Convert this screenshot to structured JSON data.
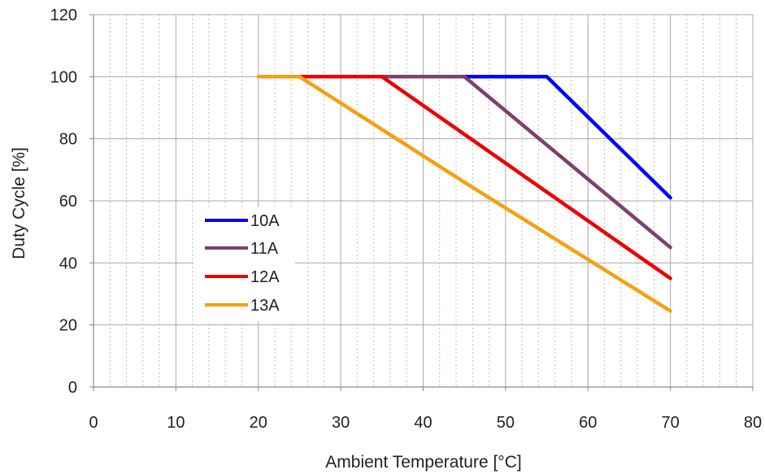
{
  "chart_data": {
    "type": "line",
    "title": "",
    "xlabel": "Ambient Temperature [°C]",
    "ylabel": "Duty Cycle [%]",
    "xlim": [
      0,
      80
    ],
    "ylim": [
      0,
      120
    ],
    "xticks": [
      0,
      10,
      20,
      30,
      40,
      50,
      60,
      70,
      80
    ],
    "yticks": [
      0,
      20,
      40,
      60,
      80,
      100,
      120
    ],
    "x_minor_step": 2,
    "grid": true,
    "legend_position": "left-middle",
    "series": [
      {
        "name": "10A",
        "color": "#0000ff",
        "x": [
          45,
          55,
          70
        ],
        "y": [
          100,
          100,
          61
        ]
      },
      {
        "name": "11A",
        "color": "#7f3f6f",
        "x": [
          35,
          45,
          70
        ],
        "y": [
          100,
          100,
          45
        ]
      },
      {
        "name": "12A",
        "color": "#ee0000",
        "x": [
          25,
          35,
          70
        ],
        "y": [
          100,
          100,
          35
        ]
      },
      {
        "name": "13A",
        "color": "#f5a010",
        "x": [
          20,
          25,
          45,
          70
        ],
        "y": [
          100,
          100,
          66,
          24.5
        ]
      }
    ]
  }
}
